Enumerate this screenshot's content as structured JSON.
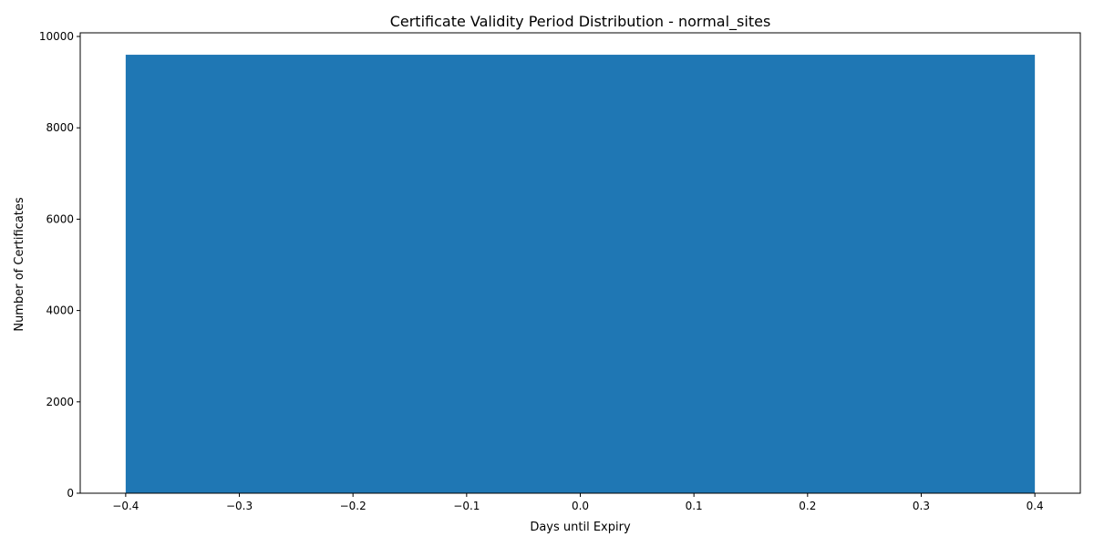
{
  "chart_data": {
    "type": "bar",
    "title": "Certificate Validity Period Distribution - normal_sites",
    "xlabel": "Days until Expiry",
    "ylabel": "Number of Certificates",
    "categories": [
      0
    ],
    "values": [
      9600
    ],
    "bar_width": 0.8,
    "xlim": [
      -0.44,
      0.44
    ],
    "ylim": [
      0,
      10080
    ],
    "xticks": [
      -0.4,
      -0.3,
      -0.2,
      -0.1,
      0.0,
      0.1,
      0.2,
      0.3,
      0.4
    ],
    "xtick_labels": [
      "−0.4",
      "−0.3",
      "−0.2",
      "−0.1",
      "0.0",
      "0.1",
      "0.2",
      "0.3",
      "0.4"
    ],
    "yticks": [
      0,
      2000,
      4000,
      6000,
      8000,
      10000
    ],
    "ytick_labels": [
      "0",
      "2000",
      "4000",
      "6000",
      "8000",
      "10000"
    ],
    "bar_color": "#1f77b4",
    "grid": false,
    "legend": "none"
  }
}
